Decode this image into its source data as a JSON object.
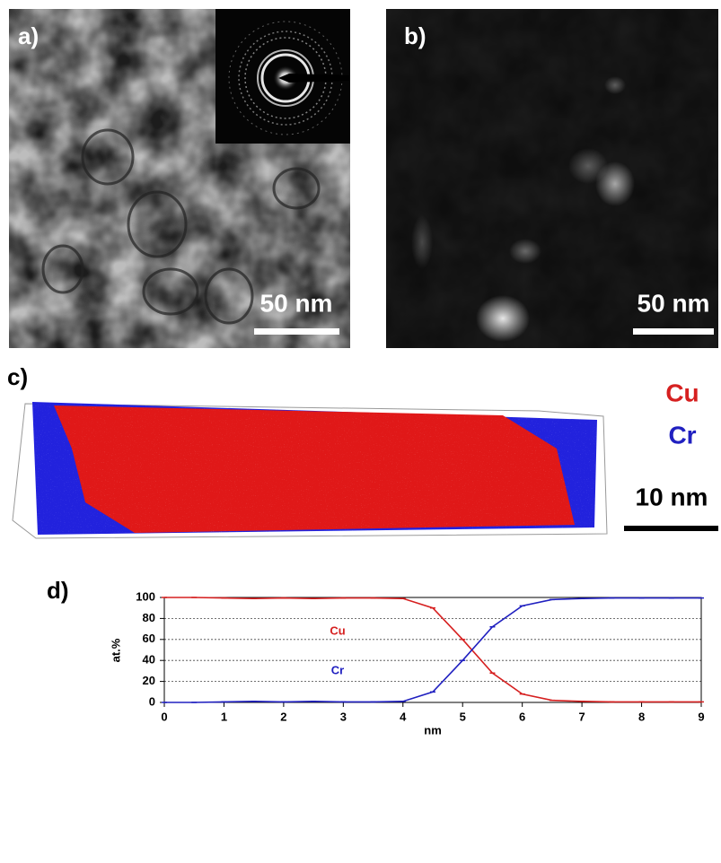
{
  "panels": [
    {
      "label": "a)",
      "scale_bar": "50 nm"
    },
    {
      "label": "b)",
      "scale_bar": "50 nm"
    },
    {
      "label": "c)",
      "legend": [
        "Cu",
        "Cr"
      ],
      "scale_bar": "10 nm"
    },
    {
      "label": "d)"
    }
  ],
  "chart_data": {
    "type": "line",
    "xlabel": "nm",
    "ylabel": "at.%",
    "x": [
      0,
      0.5,
      1,
      1.5,
      2,
      2.5,
      3,
      3.5,
      4,
      4.5,
      5,
      5.5,
      6,
      6.5,
      7,
      7.5,
      8,
      8.5,
      9
    ],
    "series": [
      {
        "name": "Cu",
        "color": "#d62020",
        "values": [
          100,
          100,
          99.5,
          99,
          99.5,
          99,
          99.5,
          99.5,
          99,
          90,
          60,
          28,
          8,
          2,
          1,
          0.5,
          0.5,
          0.5,
          0.5
        ]
      },
      {
        "name": "Cr",
        "color": "#2020c0",
        "values": [
          0,
          0,
          0.5,
          1,
          0.5,
          1,
          0.5,
          0.5,
          1,
          10,
          40,
          72,
          92,
          98,
          99,
          99.5,
          99.5,
          99.5,
          99.5
        ]
      }
    ],
    "xlim": [
      0,
      9
    ],
    "xticks": [
      0,
      1,
      2,
      3,
      4,
      5,
      6,
      7,
      8,
      9
    ],
    "ylim": [
      0,
      100
    ],
    "yticks": [
      0,
      20,
      40,
      60,
      80,
      100
    ],
    "grid": true
  }
}
